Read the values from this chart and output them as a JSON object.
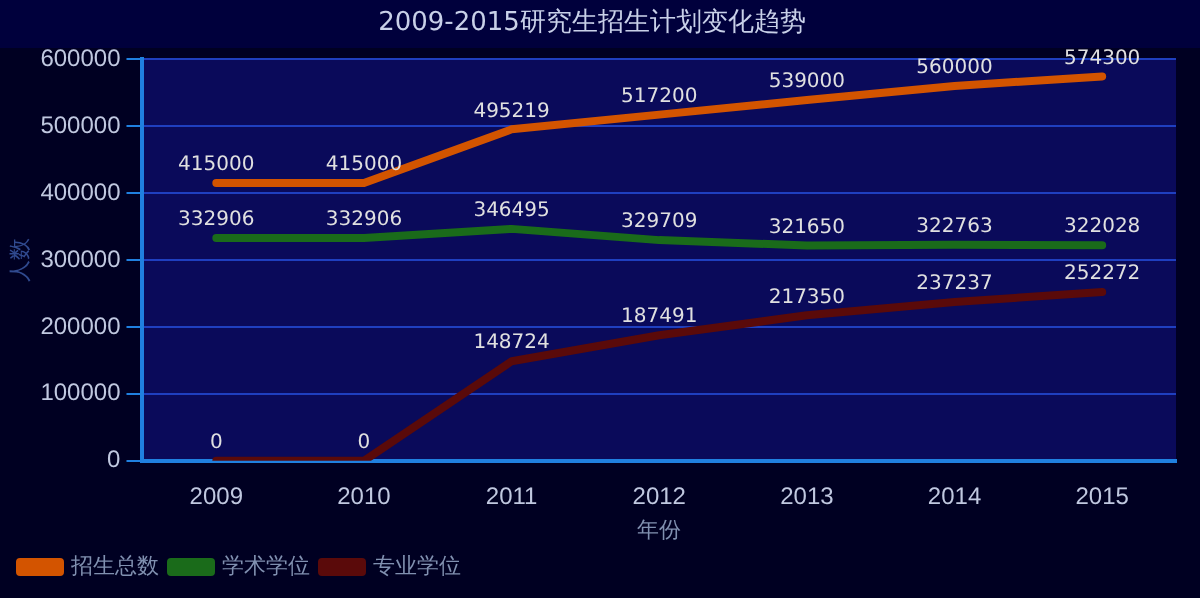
{
  "chart_data": {
    "type": "line",
    "title": "2009-2015研究生招生计划变化趋势",
    "xlabel": "年份",
    "ylabel": "人数",
    "categories": [
      "2009",
      "2010",
      "2011",
      "2012",
      "2013",
      "2014",
      "2015"
    ],
    "series": [
      {
        "name": "招生总数",
        "color": "#d35400",
        "values": [
          415000,
          415000,
          495219,
          517200,
          539000,
          560000,
          574300
        ]
      },
      {
        "name": "学术学位",
        "color": "#1a6b1a",
        "values": [
          332906,
          332906,
          346495,
          329709,
          321650,
          322763,
          322028
        ]
      },
      {
        "name": "专业学位",
        "color": "#5a0a0a",
        "values": [
          0,
          0,
          148724,
          187491,
          217350,
          237237,
          252272
        ]
      }
    ],
    "ylim": [
      0,
      600000
    ],
    "yticks": [
      0,
      100000,
      200000,
      300000,
      400000,
      500000,
      600000
    ],
    "grid": "y",
    "legend": "bottom left",
    "data_labels": true,
    "marker": "none",
    "line_style": "solid"
  }
}
